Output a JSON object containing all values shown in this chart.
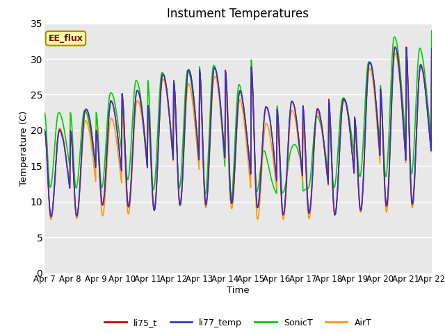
{
  "title": "Instument Temperatures",
  "xlabel": "Time",
  "ylabel": "Temperature (C)",
  "ylim": [
    0,
    35
  ],
  "series_colors": {
    "li75_t": "#cc0000",
    "li77_temp": "#3333cc",
    "SonicT": "#00cc00",
    "AirT": "#ff9900"
  },
  "x_tick_labels": [
    "Apr 7",
    "Apr 8",
    "Apr 9",
    "Apr 10",
    "Apr 11",
    "Apr 12",
    "Apr 13",
    "Apr 14",
    "Apr 15",
    "Apr 16",
    "Apr 17",
    "Apr 18",
    "Apr 19",
    "Apr 20",
    "Apr 21",
    "Apr 22"
  ],
  "background_color": "#e8e8e8",
  "figure_background": "#ffffff",
  "ee_flux_label": "EE_flux",
  "grid_color": "#ffffff",
  "yticks": [
    0,
    5,
    10,
    15,
    20,
    25,
    30,
    35
  ],
  "day_peaks_li": [
    20.0,
    20.0,
    25.0,
    23.5,
    27.0,
    28.5,
    28.5,
    29.0,
    23.0,
    23.5,
    24.5,
    22.0,
    26.0,
    32.0,
    31.5,
    27.5,
    22.5
  ],
  "day_mins_li": [
    8.0,
    7.5,
    9.5,
    9.5,
    8.5,
    9.5,
    9.5,
    9.8,
    9.5,
    8.0,
    8.5,
    8.0,
    8.5,
    9.5,
    9.0,
    11.5,
    12.5
  ],
  "day_peaks_sonic": [
    22.5,
    22.5,
    23.0,
    27.0,
    27.0,
    29.0,
    28.0,
    30.0,
    23.5,
    11.5,
    22.0,
    22.0,
    26.5,
    32.0,
    34.0,
    29.5,
    23.0
  ],
  "day_mins_sonic": [
    12.0,
    12.0,
    11.5,
    13.5,
    11.5,
    12.0,
    11.5,
    9.5,
    11.5,
    11.0,
    12.0,
    11.5,
    13.5,
    13.5,
    13.5,
    15.0,
    16.0
  ],
  "day_peaks_air": [
    20.0,
    20.5,
    22.0,
    21.5,
    26.0,
    28.0,
    25.5,
    29.0,
    21.0,
    21.0,
    24.0,
    21.5,
    26.0,
    30.5,
    31.0,
    28.0,
    22.5
  ],
  "day_mins_air": [
    7.5,
    7.5,
    8.0,
    8.0,
    9.0,
    9.5,
    9.0,
    9.5,
    7.5,
    7.5,
    7.5,
    8.0,
    8.5,
    8.5,
    8.5,
    11.0,
    12.0
  ]
}
